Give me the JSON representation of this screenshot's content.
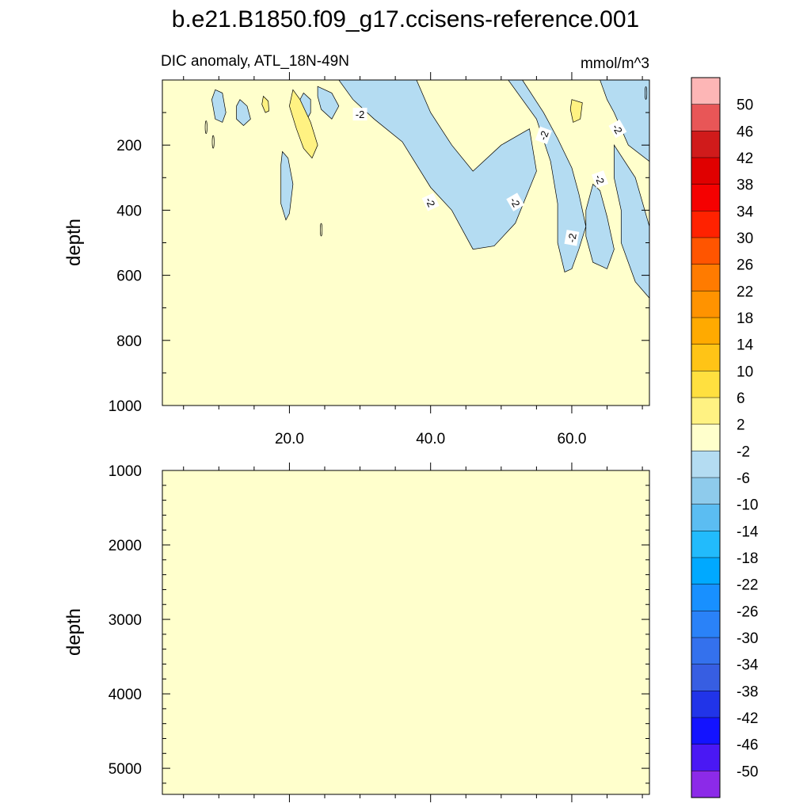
{
  "title": "b.e21.B1850.f09_g17.ccisens-reference.001",
  "chart_data": {
    "type": "contour",
    "variable_label": "DIC anomaly, ATL_18N-49N",
    "units": "mmol/m^3",
    "x_axis": {
      "range": [
        2,
        71
      ],
      "ticks": [
        20,
        40,
        60
      ],
      "tick_labels": [
        "20.0",
        "40.0",
        "60.0"
      ]
    },
    "upper_panel": {
      "ylabel": "depth",
      "ylim": [
        0,
        1000
      ],
      "y_ticks": [
        200,
        400,
        600,
        800,
        1000
      ],
      "y_tick_labels": [
        "200",
        "400",
        "600",
        "800",
        "1000"
      ],
      "contour_labels": [
        "-2",
        "-2",
        "-2",
        "-2",
        "-2",
        "-2",
        "-2"
      ],
      "background_level": "-2 to 2",
      "negative_regions": [
        {
          "name": "negative-region-main",
          "points": [
            [
              27,
              0
            ],
            [
              38,
              0
            ],
            [
              40,
              100
            ],
            [
              43,
              200
            ],
            [
              46,
              280
            ],
            [
              50,
              200
            ],
            [
              54,
              150
            ],
            [
              55,
              280
            ],
            [
              52,
              440
            ],
            [
              49,
              510
            ],
            [
              46,
              520
            ],
            [
              43,
              400
            ],
            [
              40,
              330
            ],
            [
              36,
              190
            ],
            [
              32,
              120
            ],
            [
              29,
              60
            ]
          ]
        },
        {
          "name": "negative-region-east",
          "points": [
            [
              51,
              0
            ],
            [
              53,
              0
            ],
            [
              56,
              100
            ],
            [
              58,
              180
            ],
            [
              60,
              270
            ],
            [
              61,
              350
            ],
            [
              62,
              450
            ],
            [
              61,
              520
            ],
            [
              60,
              580
            ],
            [
              59,
              590
            ],
            [
              58,
              500
            ],
            [
              58,
              380
            ],
            [
              57,
              250
            ],
            [
              55,
              120
            ]
          ]
        },
        {
          "name": "negative-region-edge",
          "points": [
            [
              64,
              0
            ],
            [
              71,
              0
            ],
            [
              71,
              250
            ],
            [
              68,
              200
            ],
            [
              66,
              100
            ],
            [
              65,
              60
            ]
          ]
        },
        {
          "name": "negative-region-deep",
          "points": [
            [
              66,
              200
            ],
            [
              69,
              300
            ],
            [
              71,
              450
            ],
            [
              71,
              670
            ],
            [
              69,
              620
            ],
            [
              67,
              500
            ],
            [
              67,
              400
            ],
            [
              66,
              300
            ]
          ]
        },
        {
          "name": "negative-region-mid",
          "points": [
            [
              63,
              320
            ],
            [
              64,
              340
            ],
            [
              65,
              420
            ],
            [
              66,
              520
            ],
            [
              65,
              580
            ],
            [
              63,
              560
            ],
            [
              62,
              480
            ],
            [
              62,
              400
            ]
          ]
        },
        {
          "name": "negative-region-small-a",
          "points": [
            [
              9.5,
              30
            ],
            [
              10.5,
              40
            ],
            [
              11,
              100
            ],
            [
              10.5,
              130
            ],
            [
              9.5,
              120
            ],
            [
              9,
              60
            ]
          ]
        },
        {
          "name": "negative-region-small-b",
          "points": [
            [
              13,
              60
            ],
            [
              14,
              80
            ],
            [
              14.5,
              120
            ],
            [
              13.5,
              140
            ],
            [
              12.5,
              120
            ],
            [
              12.5,
              80
            ]
          ]
        },
        {
          "name": "negative-region-small-c",
          "points": [
            [
              22,
              40
            ],
            [
              23,
              60
            ],
            [
              23,
              100
            ],
            [
              22,
              140
            ],
            [
              21,
              110
            ],
            [
              21.5,
              60
            ]
          ]
        },
        {
          "name": "negative-region-small-d",
          "points": [
            [
              24,
              20
            ],
            [
              26,
              40
            ],
            [
              27,
              80
            ],
            [
              26,
              120
            ],
            [
              24.5,
              90
            ],
            [
              24,
              50
            ]
          ]
        },
        {
          "name": "negative-region-small-e",
          "points": [
            [
              19,
              220
            ],
            [
              19.8,
              240
            ],
            [
              20.5,
              320
            ],
            [
              20,
              410
            ],
            [
              19.5,
              430
            ],
            [
              18.8,
              380
            ],
            [
              18.8,
              260
            ]
          ]
        }
      ],
      "positive_regions": [
        {
          "name": "positive-region-a",
          "points": [
            [
              20.5,
              30
            ],
            [
              21.5,
              60
            ],
            [
              23,
              130
            ],
            [
              24,
              200
            ],
            [
              23.2,
              240
            ],
            [
              22,
              210
            ],
            [
              21,
              150
            ],
            [
              20,
              80
            ]
          ]
        },
        {
          "name": "positive-region-b",
          "points": [
            [
              60,
              60
            ],
            [
              61.5,
              70
            ],
            [
              61.2,
              120
            ],
            [
              60.2,
              130
            ],
            [
              59.8,
              90
            ]
          ]
        },
        {
          "name": "positive-region-c",
          "points": [
            [
              16.3,
              50
            ],
            [
              17,
              65
            ],
            [
              17.1,
              95
            ],
            [
              16.6,
              100
            ],
            [
              16.1,
              75
            ]
          ]
        }
      ]
    },
    "lower_panel": {
      "ylabel": "depth",
      "ylim": [
        1000,
        5350
      ],
      "y_ticks": [
        1000,
        2000,
        3000,
        4000,
        5000
      ],
      "y_tick_labels": [
        "1000",
        "2000",
        "3000",
        "4000",
        "5000"
      ],
      "background_level": "-2 to 2"
    },
    "colorbar": {
      "labels": [
        "50",
        "46",
        "42",
        "38",
        "34",
        "30",
        "26",
        "22",
        "18",
        "14",
        "10",
        "6",
        "2",
        "-2",
        "-6",
        "-10",
        "-14",
        "-18",
        "-22",
        "-26",
        "-30",
        "-34",
        "-38",
        "-42",
        "-46",
        "-50"
      ],
      "colors": [
        "#fdb6b6",
        "#e85657",
        "#d01b1b",
        "#e00000",
        "#f50101",
        "#ff2200",
        "#ff5500",
        "#ff7b00",
        "#ff9300",
        "#ffaa00",
        "#ffc416",
        "#ffe03f",
        "#fff282",
        "#ffffcc",
        "#b4dcf2",
        "#8ecbec",
        "#5bbdf2",
        "#22bbfc",
        "#00a9ff",
        "#1890ff",
        "#2a82f8",
        "#3471ed",
        "#375ee2",
        "#2134e8",
        "#1313ff",
        "#4a18f4",
        "#8c2ae8"
      ]
    },
    "colors": {
      "neutral": "#ffffcc",
      "negative": "#b4dcf2",
      "positive": "#fff282"
    }
  }
}
